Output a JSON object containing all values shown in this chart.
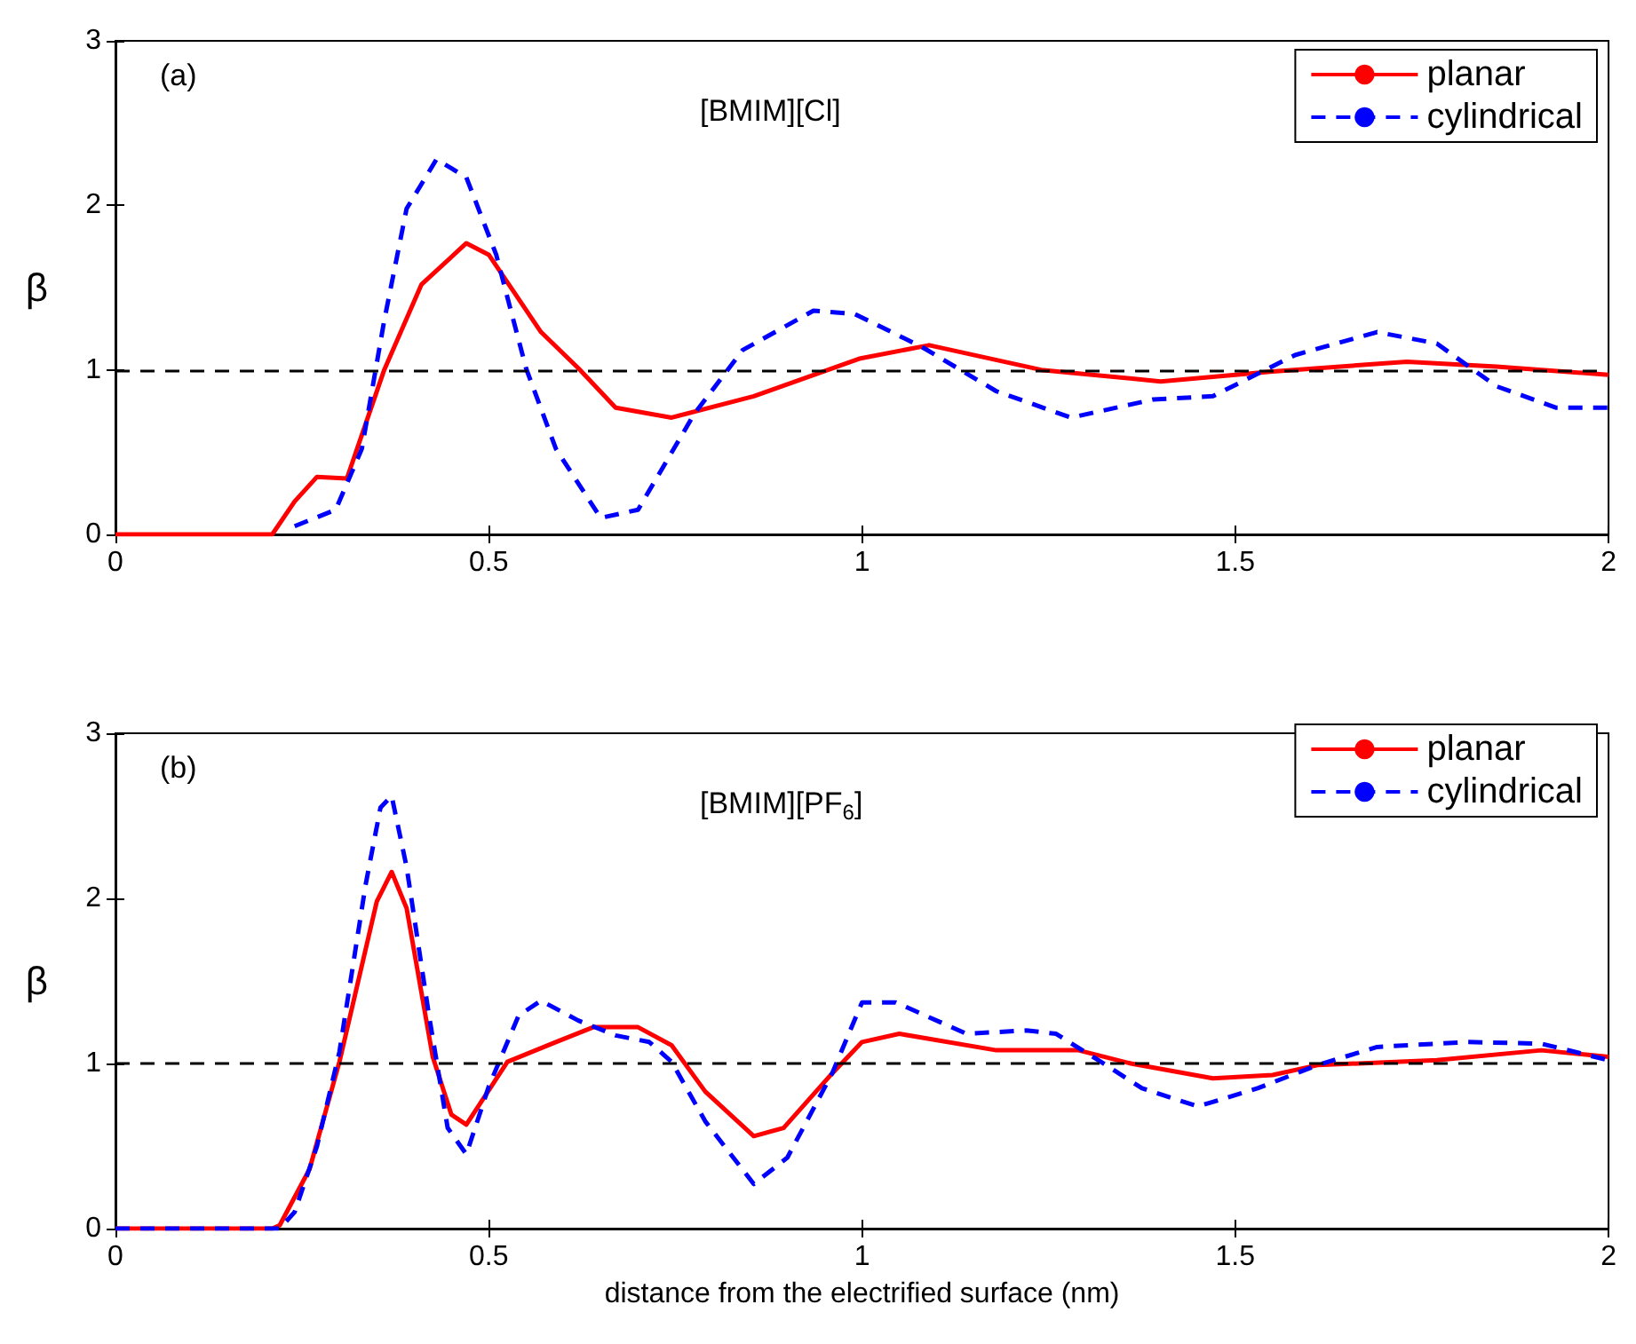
{
  "chart_data": [
    {
      "type": "line",
      "ylabel": "β",
      "annotations": [
        "(a)",
        "[BMIM][Cl]"
      ],
      "xlim": [
        0,
        2
      ],
      "ylim": [
        0,
        3
      ],
      "xticks": [
        0,
        0.5,
        1,
        1.5,
        2
      ],
      "yticks": [
        0,
        1,
        2,
        3
      ],
      "grid": false,
      "legend": "top right",
      "ref_lines": [
        {
          "axis": "y",
          "value": 1,
          "color": "#000000",
          "line_style": "dashed"
        }
      ],
      "series": [
        {
          "name": "planar",
          "color": "#ff0000",
          "line_style": "solid",
          "x": [
            0,
            0.21,
            0.24,
            0.27,
            0.31,
            0.36,
            0.41,
            0.47,
            0.5,
            0.57,
            0.62,
            0.67,
            0.745,
            0.855,
            0.998,
            1.09,
            1.24,
            1.4,
            1.55,
            1.73,
            1.85,
            2.0
          ],
          "values": [
            0,
            0,
            0.2,
            0.35,
            0.34,
            1.0,
            1.52,
            1.77,
            1.7,
            1.23,
            1.01,
            0.77,
            0.71,
            0.84,
            1.07,
            1.15,
            1.0,
            0.93,
            0.99,
            1.05,
            1.02,
            0.97
          ]
        },
        {
          "name": "cylindrical",
          "color": "#0000ff",
          "line_style": "dashed",
          "x": [
            0.24,
            0.295,
            0.33,
            0.36,
            0.39,
            0.43,
            0.47,
            0.51,
            0.55,
            0.59,
            0.65,
            0.7,
            0.775,
            0.84,
            0.935,
            0.99,
            1.08,
            1.18,
            1.28,
            1.39,
            1.47,
            1.58,
            1.69,
            1.77,
            1.85,
            1.93,
            2.0
          ],
          "values": [
            0.05,
            0.15,
            0.52,
            1.3,
            1.98,
            2.28,
            2.17,
            1.7,
            1.01,
            0.52,
            0.1,
            0.15,
            0.73,
            1.12,
            1.36,
            1.34,
            1.14,
            0.87,
            0.71,
            0.82,
            0.84,
            1.09,
            1.23,
            1.16,
            0.9,
            0.77,
            0.77
          ]
        }
      ]
    },
    {
      "type": "line",
      "xlabel": "distance from the electrified surface (nm)",
      "ylabel": "β",
      "annotations": [
        "(b)",
        "[BMIM][PF$_{6}$]"
      ],
      "xlim": [
        0,
        2
      ],
      "ylim": [
        0,
        3
      ],
      "xticks": [
        0,
        0.5,
        1,
        1.5,
        2
      ],
      "yticks": [
        0,
        1,
        2,
        3
      ],
      "grid": false,
      "legend": "top right",
      "ref_lines": [
        {
          "axis": "y",
          "value": 1,
          "color": "#000000",
          "line_style": "dashed"
        }
      ],
      "series": [
        {
          "name": "planar",
          "color": "#ff0000",
          "line_style": "solid",
          "x": [
            0,
            0.21,
            0.22,
            0.26,
            0.3,
            0.35,
            0.37,
            0.39,
            0.425,
            0.45,
            0.47,
            0.525,
            0.59,
            0.64,
            0.7,
            0.745,
            0.79,
            0.855,
            0.895,
            0.96,
            1.0,
            1.05,
            1.18,
            1.29,
            1.36,
            1.47,
            1.55,
            1.61,
            1.77,
            1.91,
            2.0
          ],
          "values": [
            0,
            0,
            0.02,
            0.36,
            1.01,
            1.98,
            2.16,
            1.94,
            1.04,
            0.69,
            0.63,
            1.01,
            1.13,
            1.22,
            1.22,
            1.11,
            0.83,
            0.56,
            0.61,
            0.94,
            1.13,
            1.18,
            1.08,
            1.08,
            1.0,
            0.91,
            0.93,
            0.99,
            1.02,
            1.08,
            1.04
          ]
        },
        {
          "name": "cylindrical",
          "color": "#0000ff",
          "line_style": "dashed",
          "x": [
            0,
            0.22,
            0.24,
            0.27,
            0.3,
            0.335,
            0.355,
            0.37,
            0.39,
            0.42,
            0.445,
            0.47,
            0.5,
            0.54,
            0.57,
            0.62,
            0.67,
            0.715,
            0.745,
            0.79,
            0.855,
            0.9,
            0.96,
            1.0,
            1.045,
            1.14,
            1.22,
            1.26,
            1.32,
            1.375,
            1.45,
            1.53,
            1.61,
            1.69,
            1.81,
            1.91,
            2.0
          ],
          "values": [
            0,
            0,
            0.1,
            0.5,
            1.07,
            2.08,
            2.55,
            2.62,
            2.19,
            1.29,
            0.61,
            0.45,
            0.86,
            1.29,
            1.38,
            1.26,
            1.17,
            1.13,
            1.01,
            0.65,
            0.27,
            0.43,
            0.94,
            1.37,
            1.37,
            1.18,
            1.2,
            1.18,
            1.01,
            0.85,
            0.74,
            0.85,
            0.99,
            1.1,
            1.13,
            1.12,
            1.02
          ]
        }
      ]
    }
  ]
}
